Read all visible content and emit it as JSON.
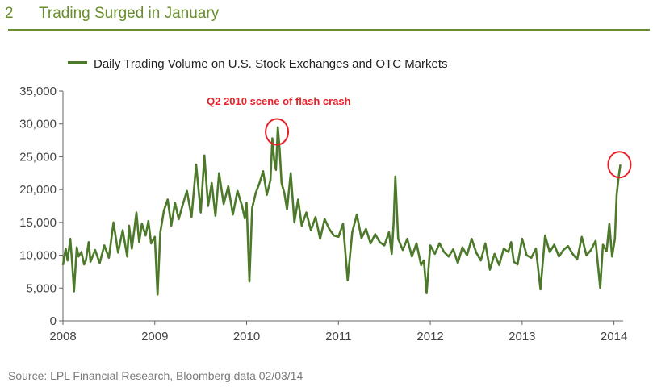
{
  "header": {
    "number": "2",
    "title": "Trading Surged in January"
  },
  "source": "Source: LPL Financial Research, Bloomberg data   02/03/14",
  "colors": {
    "line": "#4c7a2a",
    "accent": "#6a8e2e",
    "annotation": "#e8202a"
  },
  "chart_data": {
    "type": "line",
    "title": "Trading Surged in January",
    "legend": "Daily Trading Volume on U.S. Stock Exchanges and OTC Markets",
    "legend_position": "top-left",
    "xlabel": "",
    "ylabel": "",
    "xlim": [
      2008,
      2014.1
    ],
    "ylim": [
      0,
      35000
    ],
    "xticks": [
      2008,
      2009,
      2010,
      2011,
      2012,
      2013,
      2014
    ],
    "xtick_labels": [
      "2008",
      "2009",
      "2010",
      "2011",
      "2012",
      "2013",
      "2014"
    ],
    "yticks": [
      0,
      5000,
      10000,
      15000,
      20000,
      25000,
      30000,
      35000
    ],
    "ytick_labels": [
      "0",
      "5,000",
      "10,000",
      "15,000",
      "20,000",
      "25,000",
      "30,000",
      "35,000"
    ],
    "grid": false,
    "annotation": {
      "text": "Q2 2010 scene of flash crash",
      "x": 2010.35,
      "y": 29500
    },
    "circles": [
      {
        "x": 2010.33,
        "y": 28800
      },
      {
        "x": 2014.06,
        "y": 23800
      }
    ],
    "series": [
      {
        "name": "Daily Trading Volume on U.S. Stock Exchanges and OTC Markets",
        "x": [
          2008.0,
          2008.03,
          2008.05,
          2008.08,
          2008.1,
          2008.12,
          2008.15,
          2008.17,
          2008.2,
          2008.23,
          2008.25,
          2008.28,
          2008.3,
          2008.35,
          2008.4,
          2008.45,
          2008.5,
          2008.55,
          2008.6,
          2008.65,
          2008.7,
          2008.72,
          2008.75,
          2008.78,
          2008.8,
          2008.83,
          2008.86,
          2008.9,
          2008.93,
          2008.96,
          2009.0,
          2009.03,
          2009.06,
          2009.1,
          2009.14,
          2009.18,
          2009.22,
          2009.26,
          2009.3,
          2009.35,
          2009.4,
          2009.45,
          2009.5,
          2009.54,
          2009.58,
          2009.62,
          2009.66,
          2009.7,
          2009.75,
          2009.8,
          2009.85,
          2009.9,
          2009.95,
          2009.98,
          2010.0,
          2010.03,
          2010.06,
          2010.1,
          2010.14,
          2010.18,
          2010.22,
          2010.26,
          2010.28,
          2010.3,
          2010.32,
          2010.34,
          2010.36,
          2010.38,
          2010.41,
          2010.44,
          2010.48,
          2010.52,
          2010.56,
          2010.6,
          2010.65,
          2010.7,
          2010.75,
          2010.8,
          2010.85,
          2010.9,
          2010.95,
          2011.0,
          2011.05,
          2011.1,
          2011.15,
          2011.2,
          2011.25,
          2011.3,
          2011.35,
          2011.4,
          2011.45,
          2011.5,
          2011.55,
          2011.58,
          2011.6,
          2011.62,
          2011.65,
          2011.7,
          2011.75,
          2011.8,
          2011.85,
          2011.9,
          2011.93,
          2011.96,
          2012.0,
          2012.05,
          2012.1,
          2012.15,
          2012.2,
          2012.25,
          2012.3,
          2012.35,
          2012.4,
          2012.45,
          2012.5,
          2012.55,
          2012.6,
          2012.65,
          2012.7,
          2012.75,
          2012.8,
          2012.85,
          2012.88,
          2012.91,
          2012.95,
          2013.0,
          2013.05,
          2013.1,
          2013.15,
          2013.2,
          2013.25,
          2013.3,
          2013.35,
          2013.4,
          2013.45,
          2013.5,
          2013.55,
          2013.6,
          2013.65,
          2013.7,
          2013.75,
          2013.8,
          2013.85,
          2013.88,
          2013.92,
          2013.95,
          2013.98,
          2014.01,
          2014.03,
          2014.05,
          2014.07
        ],
        "values": [
          8500,
          11000,
          9200,
          12500,
          8800,
          4500,
          11200,
          9800,
          10500,
          8600,
          9200,
          12000,
          9000,
          10800,
          8800,
          11500,
          9600,
          15000,
          10400,
          13800,
          9800,
          14500,
          11000,
          14200,
          16500,
          12000,
          14800,
          13000,
          15200,
          11800,
          12800,
          4000,
          13500,
          16800,
          18500,
          14500,
          18000,
          15500,
          17500,
          19800,
          15800,
          23800,
          16500,
          25200,
          17500,
          21000,
          16000,
          22500,
          17800,
          20500,
          16200,
          19800,
          17500,
          15600,
          18000,
          6000,
          17200,
          19500,
          21000,
          22800,
          19200,
          21500,
          27800,
          24500,
          23000,
          29500,
          26000,
          21000,
          19500,
          17000,
          22500,
          15000,
          18500,
          14500,
          16500,
          13800,
          15800,
          12500,
          15500,
          14000,
          13000,
          12800,
          14800,
          6200,
          13500,
          16200,
          12600,
          14000,
          11800,
          13200,
          12000,
          11500,
          13500,
          10200,
          14800,
          22000,
          12500,
          10800,
          12500,
          9800,
          11800,
          8500,
          9200,
          4200,
          11500,
          10200,
          11800,
          10500,
          9800,
          10900,
          8800,
          11200,
          10000,
          12500,
          10400,
          9200,
          11800,
          7800,
          10200,
          8500,
          11000,
          10500,
          12000,
          9000,
          8600,
          12500,
          10000,
          9600,
          11000,
          4800,
          13000,
          10500,
          11600,
          9800,
          10800,
          11400,
          10200,
          9400,
          12800,
          10000,
          10800,
          12200,
          5000,
          11600,
          10600,
          14800,
          9800,
          12500,
          19200,
          21800,
          23800
        ]
      }
    ]
  }
}
